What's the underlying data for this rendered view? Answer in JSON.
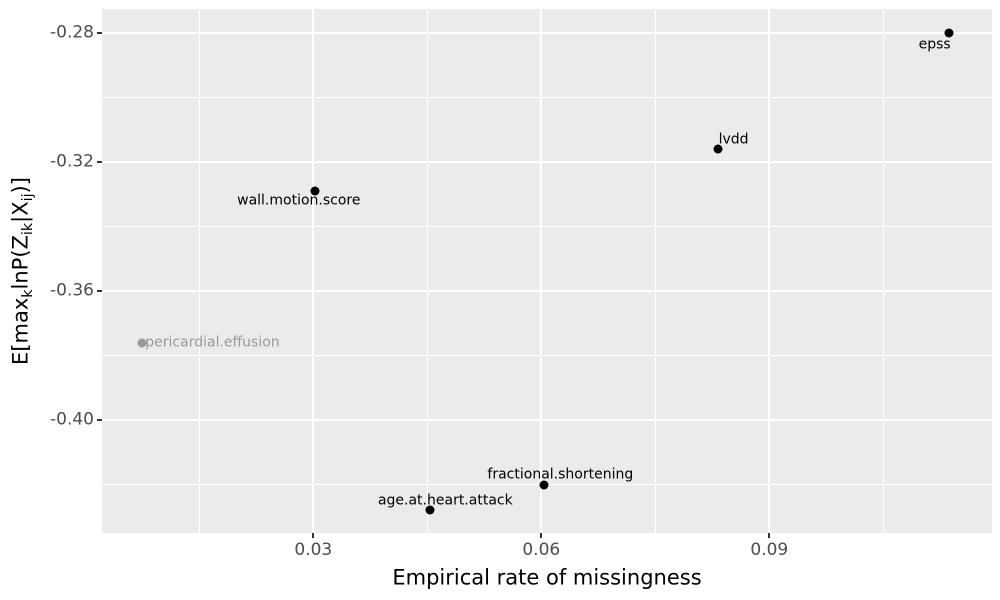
{
  "figure": {
    "background": "#ffffff",
    "panel_background": "#ebebeb",
    "grid_color": "#ffffff",
    "tick_color": "#333333",
    "tick_label_color": "#4d4d4d",
    "point_color_default": "#000000",
    "point_color_muted": "#9a9a9a"
  },
  "chart_data": {
    "type": "scatter",
    "title": "",
    "xlabel": "Empirical rate of missingness",
    "ylabel": "E[max_k lnP(Z_ik|X_ij)]",
    "ylabel_segments": [
      {
        "text": "E[max",
        "sub": false
      },
      {
        "text": "k",
        "sub": true
      },
      {
        "text": "lnP(Z",
        "sub": false
      },
      {
        "text": "ik",
        "sub": true
      },
      {
        "text": "|X",
        "sub": false
      },
      {
        "text": "ij",
        "sub": true
      },
      {
        "text": ")]",
        "sub": false
      }
    ],
    "xlim": [
      0.0022,
      0.1193
    ],
    "ylim": [
      -0.435,
      -0.2726
    ],
    "x_major_ticks": [
      0.03,
      0.06,
      0.09
    ],
    "x_tick_labels": [
      "0.03",
      "0.06",
      "0.09"
    ],
    "x_minor_ticks": [
      0.015,
      0.045,
      0.075,
      0.105
    ],
    "y_major_ticks": [
      -0.28,
      -0.32,
      -0.36,
      -0.4
    ],
    "y_tick_labels": [
      "-0.28",
      "-0.32",
      "-0.36",
      "-0.40"
    ],
    "y_minor_ticks": [
      -0.3,
      -0.34,
      -0.38,
      -0.42
    ],
    "grid": "major+minor",
    "legend": "none",
    "points": [
      {
        "label": "epss",
        "x": 0.1136,
        "y": -0.28,
        "color": "#000000",
        "label_anchor": "end",
        "label_offset": [
          2,
          12
        ]
      },
      {
        "label": "lvdd",
        "x": 0.0832,
        "y": -0.316,
        "color": "#000000",
        "label_anchor": "start",
        "label_offset": [
          1,
          -9
        ]
      },
      {
        "label": "wall.motion.score",
        "x": 0.0302,
        "y": -0.329,
        "color": "#000000",
        "label_anchor": "middle",
        "label_offset": [
          -16,
          10
        ]
      },
      {
        "label": "pericardial.effusion",
        "x": 0.0075,
        "y": -0.376,
        "color": "#9a9a9a",
        "label_anchor": "start",
        "label_offset": [
          3,
          0
        ]
      },
      {
        "label": "fractional.shortening",
        "x": 0.0604,
        "y": -0.42,
        "color": "#000000",
        "label_anchor": "middle",
        "label_offset": [
          16,
          -10
        ]
      },
      {
        "label": "age.at.heart.attack",
        "x": 0.0454,
        "y": -0.428,
        "color": "#000000",
        "label_anchor": "middle",
        "label_offset": [
          15,
          -9
        ]
      }
    ]
  }
}
